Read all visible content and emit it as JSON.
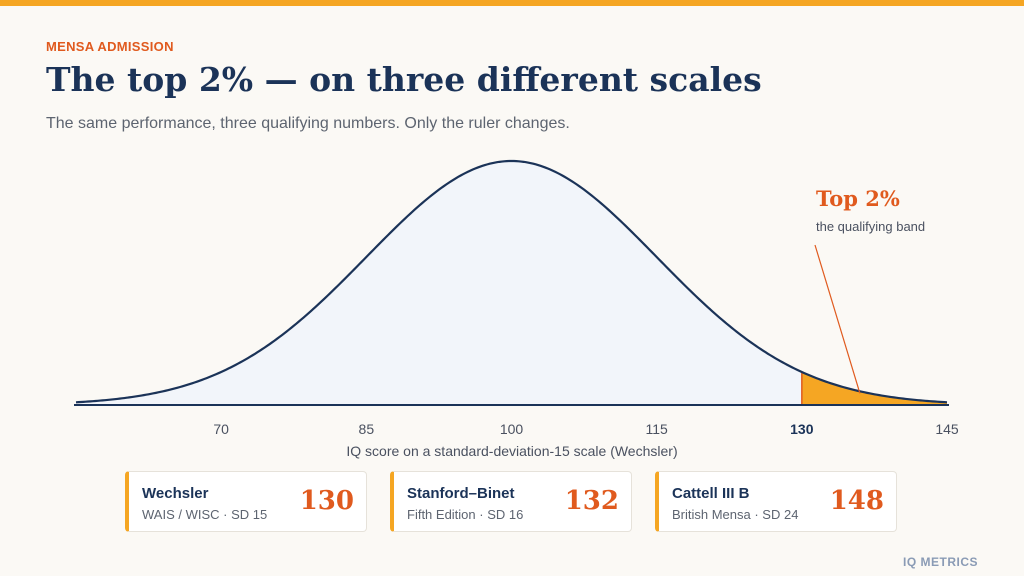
{
  "header": {
    "eyebrow": "MENSA ADMISSION",
    "title": "The top 2% — on three different scales",
    "subtitle": "The same performance, three qualifying numbers. Only the ruler changes."
  },
  "chart_data": {
    "type": "area",
    "distribution": "normal",
    "mean": 100,
    "sd": 15,
    "xlim": [
      55,
      145
    ],
    "xticks": [
      70,
      85,
      100,
      115,
      130,
      145
    ],
    "highlight_tick": 130,
    "shaded_region": [
      130,
      145
    ],
    "xlabel": "IQ score on a standard-deviation-15 scale (Wechsler)",
    "ylabel": "",
    "grid": false,
    "annotation": {
      "title": "Top 2%",
      "subtitle": "the qualifying band",
      "target_x": 136
    }
  },
  "cards": [
    {
      "name": "Wechsler",
      "desc": "WAIS / WISC · SD 15",
      "score": "130"
    },
    {
      "name": "Stanford–Binet",
      "desc": "Fifth Edition · SD 16",
      "score": "132"
    },
    {
      "name": "Cattell III B",
      "desc": "British Mensa · SD 24",
      "score": "148"
    }
  ],
  "footer": {
    "brand": "IQ METRICS"
  },
  "colors": {
    "accent": "#f5a623",
    "accent_text": "#e05a1e",
    "navy": "#1b3358",
    "curve_fill": "#f2f5fa"
  }
}
